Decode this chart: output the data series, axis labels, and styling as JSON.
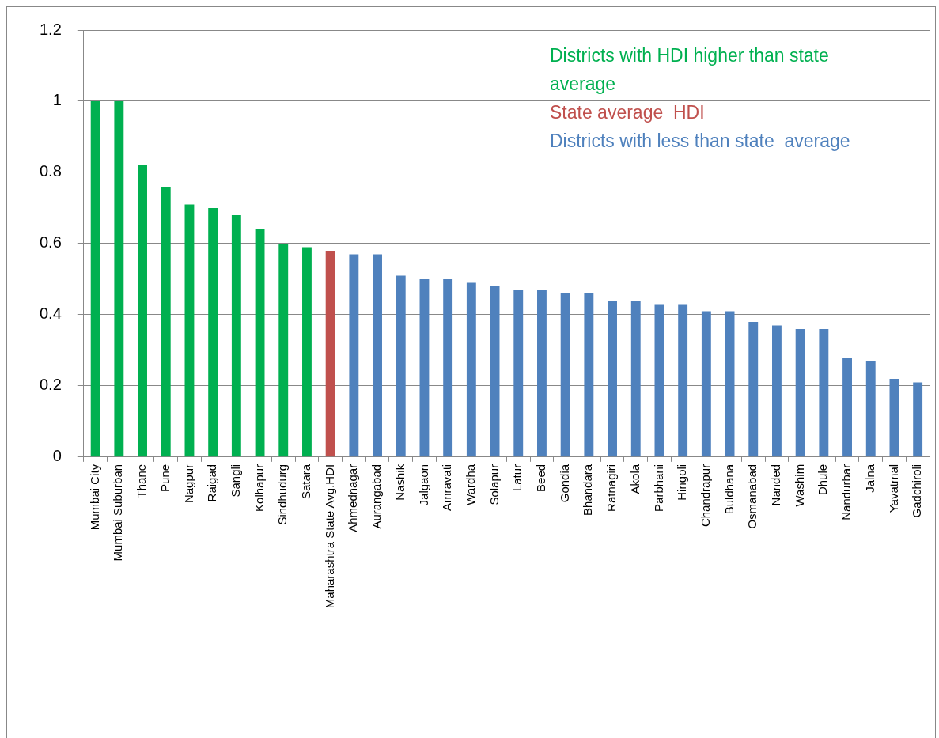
{
  "chart_data": {
    "type": "bar",
    "stacked": true,
    "categories": [
      "Mumbai City",
      "Mumbai Suburban",
      "Thane",
      "Pune",
      "Nagpur",
      "Raigad",
      "Sangli",
      "Kolhapur",
      "Sindhudurg",
      "Satara",
      "Maharashtra State Avg.HDI",
      "Ahmednagar",
      "Aurangabad",
      "Nashik",
      "Jalgaon",
      "Amravati",
      "Wardha",
      "Solapur",
      "Latur",
      "Beed",
      "Gondia",
      "Bhandara",
      "Ratnagiri",
      "Akola",
      "Parbhani",
      "Hingoli",
      "Chandrapur",
      "Buldhana",
      "Osmanabad",
      "Nanded",
      "Washim",
      "Dhule",
      "Nandurbar",
      "Jalna",
      "Yavatmal",
      "Gadchiroli"
    ],
    "series": [
      {
        "name": "Districts with HDI higher than state average",
        "color": "#00b050",
        "values": [
          1,
          1,
          0.82,
          0.76,
          0.71,
          0.7,
          0.68,
          0.64,
          0.6,
          0.59,
          null,
          null,
          null,
          null,
          null,
          null,
          null,
          null,
          null,
          null,
          null,
          null,
          null,
          null,
          null,
          null,
          null,
          null,
          null,
          null,
          null,
          null,
          null,
          null,
          null,
          null
        ]
      },
      {
        "name": "State average  HDI",
        "color": "#c0504d",
        "values": [
          null,
          null,
          null,
          null,
          null,
          null,
          null,
          null,
          null,
          null,
          0.58,
          null,
          null,
          null,
          null,
          null,
          null,
          null,
          null,
          null,
          null,
          null,
          null,
          null,
          null,
          null,
          null,
          null,
          null,
          null,
          null,
          null,
          null,
          null,
          null,
          null
        ]
      },
      {
        "name": "Districts with less than state  average",
        "color": "#4f81bd",
        "values": [
          null,
          null,
          null,
          null,
          null,
          null,
          null,
          null,
          null,
          null,
          null,
          0.57,
          0.57,
          0.51,
          0.5,
          0.5,
          0.49,
          0.48,
          0.47,
          0.47,
          0.46,
          0.46,
          0.44,
          0.44,
          0.43,
          0.43,
          0.41,
          0.41,
          0.38,
          0.37,
          0.36,
          0.36,
          0.28,
          0.27,
          0.22,
          0.21
        ]
      }
    ],
    "ylim": [
      0,
      1.2
    ],
    "yticks": [
      0,
      0.2,
      0.4,
      0.6,
      0.8,
      1,
      1.2
    ],
    "grid": "y",
    "legend": "top right"
  }
}
